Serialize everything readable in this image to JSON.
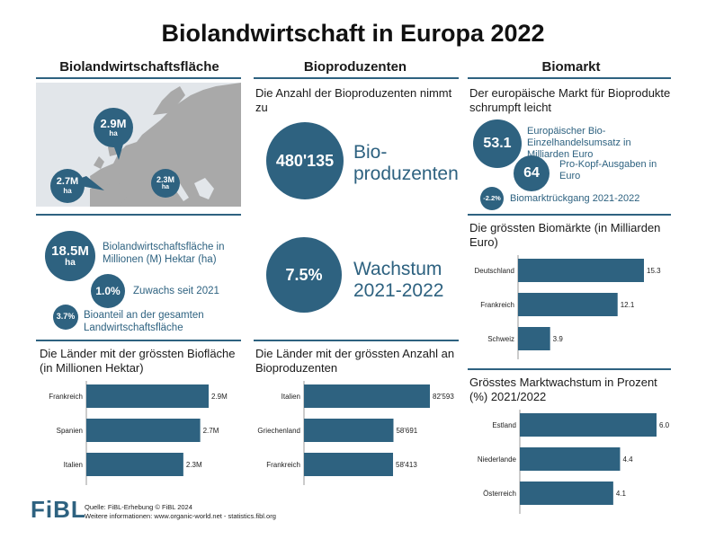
{
  "title": "Biolandwirtschaft in Europa 2022",
  "columns": {
    "area": "Biolandwirtschaftsfläche",
    "producers": "Bioproduzenten",
    "market": "Biomarkt"
  },
  "map": {
    "markers": [
      {
        "value": "2.9M",
        "unit": "ha"
      },
      {
        "value": "2.7M",
        "unit": "ha"
      },
      {
        "value": "2.3M",
        "unit": "ha"
      }
    ]
  },
  "area_stats": {
    "total_value": "18.5M",
    "total_unit": "ha",
    "total_label": "Biolandwirtschaftsfläche in Millionen (M) Hektar (ha)",
    "growth_value": "1.0%",
    "growth_label": "Zuwachs seit 2021",
    "share_value": "3.7%",
    "share_label": "Bioanteil an der gesamten Landwirtschaftsfläche"
  },
  "producer_stats": {
    "intro": "Die Anzahl der Bioproduzenten nimmt zu",
    "count_value": "480'135",
    "count_label": "Bio-\nproduzenten",
    "growth_value": "7.5%",
    "growth_label": "Wachstum\n2021-2022"
  },
  "market_stats": {
    "intro": "Der europäische Markt für Bioprodukte schrumpft leicht",
    "retail_value": "53.1",
    "retail_label": "Europäischer Bio-Einzelhandelsumsatz in Milliarden Euro",
    "per_capita_value": "64",
    "per_capita_label": "Pro-Kopf-Ausgaben in Euro",
    "decline_value": "-2.2%",
    "decline_label": "Biomarktrückgang 2021-2022"
  },
  "chart_data": [
    {
      "type": "bar",
      "orientation": "horizontal",
      "title": "Die Länder mit der grössten Biofläche (in Millionen Hektar)",
      "categories": [
        "Frankreich",
        "Spanien",
        "Italien"
      ],
      "values": [
        2.9,
        2.7,
        2.3
      ],
      "value_labels": [
        "2.9M",
        "2.7M",
        "2.3M"
      ],
      "color": "#2e6280"
    },
    {
      "type": "bar",
      "orientation": "horizontal",
      "title": "Die Länder mit der grössten Anzahl an Bioproduzenten",
      "categories": [
        "Italien",
        "Griechenland",
        "Frankreich"
      ],
      "values": [
        82593,
        58691,
        58413
      ],
      "value_labels": [
        "82'593",
        "58'691",
        "58'413"
      ],
      "color": "#2e6280"
    },
    {
      "type": "bar",
      "orientation": "horizontal",
      "title": "Die grössten Biomärkte (in Milliarden Euro)",
      "categories": [
        "Deutschland",
        "Frankreich",
        "Schweiz"
      ],
      "values": [
        15.3,
        12.1,
        3.9
      ],
      "value_labels": [
        "15.3",
        "12.1",
        "3.9"
      ],
      "color": "#2e6280"
    },
    {
      "type": "bar",
      "orientation": "horizontal",
      "title": "Grösstes Marktwachstum in Prozent (%) 2021/2022",
      "categories": [
        "Estland",
        "Niederlande",
        "Österreich"
      ],
      "values": [
        6.0,
        4.4,
        4.1
      ],
      "value_labels": [
        "6.0",
        "4.4",
        "4.1"
      ],
      "color": "#2e6280"
    }
  ],
  "footer": {
    "logo": "FiBL",
    "source": "Quelle: FiBL-Erhebung © FiBL 2024",
    "info": "Weitere informationen: www.organic-world.net - statistics.fibl.org"
  },
  "colors": {
    "accent": "#2e6280",
    "map_land": "#a9a9a9",
    "map_sea": "#e2e6ea"
  }
}
